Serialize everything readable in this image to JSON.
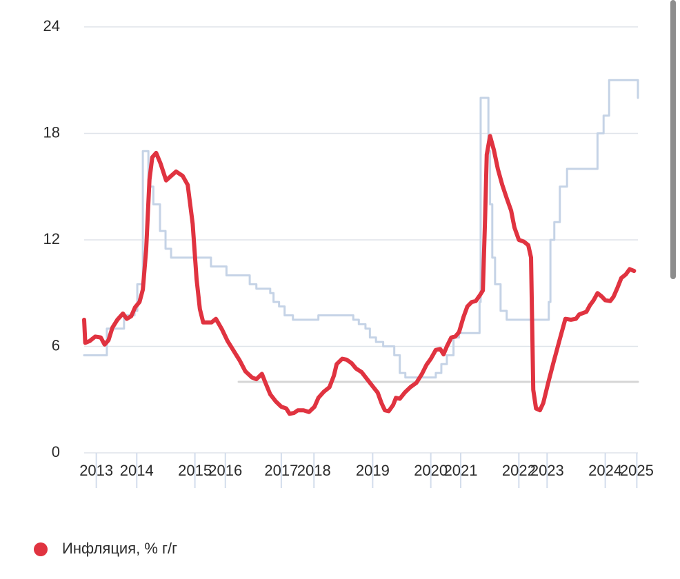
{
  "chart_data": {
    "type": "line",
    "ylim": [
      0,
      24
    ],
    "yticks": [
      0,
      6,
      12,
      18,
      24
    ],
    "xlim": [
      0,
      100
    ],
    "xticks": [
      {
        "value": 2.2,
        "label": "2013"
      },
      {
        "value": 9.5,
        "label": "2014"
      },
      {
        "value": 20.0,
        "label": "2015"
      },
      {
        "value": 25.5,
        "label": "2016"
      },
      {
        "value": 35.6,
        "label": "2017"
      },
      {
        "value": 41.5,
        "label": "2018"
      },
      {
        "value": 52.1,
        "label": "2019"
      },
      {
        "value": 62.6,
        "label": "2020"
      },
      {
        "value": 68.0,
        "label": "2021"
      },
      {
        "value": 78.5,
        "label": "2022"
      },
      {
        "value": 83.6,
        "label": "2023"
      },
      {
        "value": 94.1,
        "label": "2024"
      },
      {
        "value": 99.8,
        "label": "2025"
      }
    ],
    "grid": true,
    "series": [
      {
        "name": "Инфляция, % г/г",
        "color": "#e03340",
        "x": [
          0,
          0.2,
          1.0,
          2.0,
          3.0,
          3.7,
          4.4,
          5.1,
          6.0,
          7.0,
          7.7,
          8.5,
          9.2,
          10.0,
          10.6,
          11.2,
          11.8,
          12.3,
          13.0,
          13.8,
          14.8,
          15.7,
          16.6,
          17.8,
          18.7,
          19.6,
          20.3,
          20.9,
          21.5,
          23.0,
          23.8,
          24.9,
          25.9,
          27.1,
          28.1,
          29.1,
          30.3,
          31.1,
          32.1,
          32.8,
          33.6,
          34.6,
          35.6,
          36.5,
          37.1,
          37.9,
          38.6,
          39.6,
          40.6,
          41.6,
          42.3,
          43.3,
          44.3,
          45.1,
          45.6,
          46.6,
          47.4,
          48.3,
          49.1,
          50.1,
          51.1,
          52.1,
          53.0,
          53.7,
          54.3,
          55.0,
          55.8,
          56.3,
          57.0,
          57.9,
          58.9,
          60.0,
          61.0,
          61.8,
          62.6,
          63.5,
          64.3,
          64.9,
          65.5,
          66.3,
          67.0,
          67.7,
          68.5,
          69.2,
          70.0,
          70.7,
          71.5,
          72.0,
          72.4,
          72.7,
          73.3,
          74.0,
          74.7,
          75.5,
          76.3,
          77.1,
          77.7,
          78.5,
          79.4,
          80.2,
          80.7,
          81.1,
          81.6,
          82.3,
          82.9,
          83.8,
          84.8,
          85.8,
          86.9,
          87.9,
          88.8,
          89.4,
          90.7,
          91.3,
          92.0,
          92.7,
          93.5,
          94.1,
          95.0,
          95.6,
          96.3,
          97.0,
          97.8,
          98.5,
          99.3
        ],
        "values": [
          7.5,
          6.2,
          6.3,
          6.55,
          6.5,
          6.1,
          6.35,
          7.05,
          7.5,
          7.85,
          7.55,
          7.7,
          8.2,
          8.5,
          9.2,
          11.45,
          15.4,
          16.65,
          16.9,
          16.3,
          15.35,
          15.6,
          15.85,
          15.6,
          15.1,
          12.9,
          9.8,
          8.1,
          7.35,
          7.35,
          7.55,
          6.95,
          6.3,
          5.7,
          5.2,
          4.6,
          4.25,
          4.15,
          4.45,
          3.9,
          3.3,
          2.9,
          2.6,
          2.5,
          2.2,
          2.25,
          2.4,
          2.4,
          2.3,
          2.6,
          3.1,
          3.45,
          3.7,
          4.35,
          5.0,
          5.3,
          5.25,
          5.05,
          4.75,
          4.55,
          4.15,
          3.75,
          3.4,
          2.8,
          2.4,
          2.35,
          2.7,
          3.1,
          3.05,
          3.4,
          3.7,
          3.95,
          4.45,
          4.95,
          5.3,
          5.8,
          5.85,
          5.55,
          6.0,
          6.5,
          6.55,
          6.8,
          7.65,
          8.25,
          8.5,
          8.55,
          8.9,
          9.15,
          13.2,
          16.8,
          17.85,
          17.05,
          16.0,
          15.1,
          14.35,
          13.65,
          12.7,
          12.0,
          11.9,
          11.7,
          11.0,
          3.55,
          2.5,
          2.4,
          2.8,
          3.95,
          5.15,
          6.3,
          7.55,
          7.5,
          7.55,
          7.8,
          7.95,
          8.3,
          8.6,
          9.0,
          8.8,
          8.6,
          8.55,
          8.8,
          9.3,
          9.85,
          10.05,
          10.35,
          10.25
        ]
      },
      {
        "color": "#c5d3e6",
        "step": true,
        "x": [
          0,
          4.1,
          7.2,
          9.1,
          9.6,
          10.6,
          11.6,
          12.5,
          13.7,
          14.7,
          15.7,
          22.9,
          25.7,
          29.9,
          31.1,
          33.6,
          34.2,
          35.2,
          36.2,
          37.7,
          42.3,
          48.6,
          49.6,
          50.8,
          51.6,
          52.7,
          54.0,
          56.0,
          57.0,
          58.0,
          63.5,
          64.5,
          65.5,
          66.7,
          67.7,
          71.4,
          71.6,
          73.0,
          73.3,
          73.7,
          74.2,
          75.2,
          76.3,
          83.9,
          84.2,
          84.9,
          85.9,
          87.2,
          92.7,
          93.8,
          94.8,
          100
        ],
        "values": [
          5.5,
          7.0,
          7.75,
          8.0,
          9.5,
          17.0,
          15.0,
          14.0,
          12.5,
          11.5,
          11.0,
          10.5,
          10.0,
          9.5,
          9.25,
          9.0,
          8.5,
          8.25,
          7.75,
          7.5,
          7.75,
          7.5,
          7.25,
          7.0,
          6.5,
          6.25,
          6.0,
          5.5,
          4.5,
          4.25,
          4.5,
          5.0,
          5.5,
          6.5,
          6.75,
          8.5,
          20.0,
          17.0,
          14.0,
          11.0,
          9.5,
          8.0,
          7.5,
          8.5,
          12.0,
          13.0,
          15.0,
          16.0,
          18.0,
          19.0,
          21.0,
          20.0
        ]
      },
      {
        "color": "#d6d6d6",
        "x": [
          27.9,
          100
        ],
        "values": [
          4,
          4
        ]
      }
    ],
    "legend": "bottom-left"
  }
}
